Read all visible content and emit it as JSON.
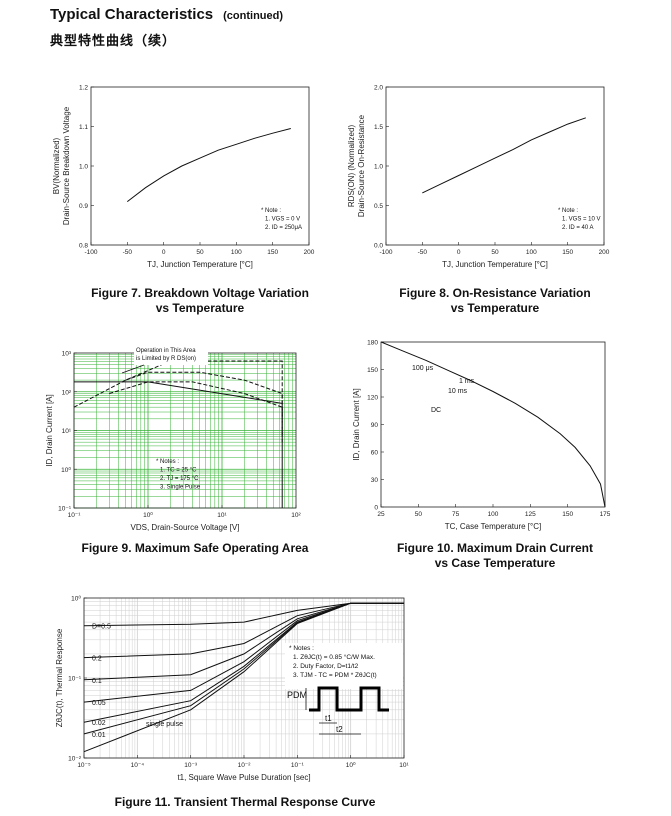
{
  "header": {
    "title": "Typical Characteristics",
    "continued": "(continued)",
    "subtitle_cn": "典型特性曲线（续）"
  },
  "chart_data": [
    {
      "id": "fig7",
      "type": "line",
      "caption_line1": "Figure 7. Breakdown Voltage Variation",
      "caption_line2": "vs Temperature",
      "ylabel_line1": "BV(Normalized)",
      "ylabel_line2": "Drain-Source Breakdown Voltage",
      "xlabel": "TJ, Junction Temperature [°C]",
      "xlim": [
        -100,
        200
      ],
      "ylim": [
        0.8,
        1.2
      ],
      "xticks": [
        "-100",
        "-50",
        "0",
        "50",
        "100",
        "150",
        "200"
      ],
      "yticks": [
        "0.8",
        "0.9",
        "1.0",
        "1.1",
        "1.2"
      ],
      "note": [
        "* Note :",
        "1. VGS = 0 V",
        "2. ID = 250μA"
      ],
      "series": [
        {
          "x": [
            -50,
            -25,
            0,
            25,
            50,
            75,
            100,
            125,
            150,
            175
          ],
          "y": [
            0.91,
            0.945,
            0.975,
            1.0,
            1.02,
            1.04,
            1.055,
            1.07,
            1.083,
            1.095
          ]
        }
      ]
    },
    {
      "id": "fig8",
      "type": "line",
      "caption_line1": "Figure 8. On-Resistance Variation",
      "caption_line2": "vs Temperature",
      "ylabel_line1": "RDS(ON) (Normalized)",
      "ylabel_line2": "Drain-Source On-Resistance",
      "xlabel": "TJ, Junction Temperature [°C]",
      "xlim": [
        -100,
        200
      ],
      "ylim": [
        0.0,
        2.0
      ],
      "xticks": [
        "-100",
        "-50",
        "0",
        "50",
        "100",
        "150",
        "200"
      ],
      "yticks": [
        "0.0",
        "0.5",
        "1.0",
        "1.5",
        "2.0"
      ],
      "note": [
        "* Note :",
        "1. VGS = 10 V",
        "2. ID = 40 A"
      ],
      "series": [
        {
          "x": [
            -50,
            -25,
            0,
            25,
            50,
            75,
            100,
            125,
            150,
            175
          ],
          "y": [
            0.66,
            0.77,
            0.88,
            0.99,
            1.1,
            1.21,
            1.33,
            1.43,
            1.53,
            1.61
          ]
        }
      ]
    },
    {
      "id": "fig9",
      "type": "line",
      "xscale": "log",
      "yscale": "log",
      "caption_line1": "Figure 9. Maximum Safe Operating Area",
      "ylabel": "ID, Drain Current [A]",
      "xlabel": "VDS, Drain-Source Voltage [V]",
      "xlim": [
        0.1,
        100
      ],
      "ylim": [
        0.1,
        1000
      ],
      "xticks": [
        "10⁻¹",
        "10⁰",
        "10¹",
        "10²"
      ],
      "yticks": [
        "10⁻¹",
        "10⁰",
        "10¹",
        "10²",
        "10³"
      ],
      "annotation": [
        "Operation in This Area",
        "is Limited by R DS(on)"
      ],
      "note": [
        "* Notes :",
        "1. TC = 25 °C",
        "2. TJ = 175 °C",
        "3. Single Pulse"
      ],
      "curve_labels": [
        "100 μs",
        "1 ms",
        "10 ms",
        "DC"
      ],
      "series": [
        {
          "name": "100 μs",
          "x": [
            0.1,
            0.2,
            0.5,
            2,
            6,
            65,
            65
          ],
          "y": [
            40,
            80,
            200,
            620,
            620,
            620,
            20
          ]
        },
        {
          "name": "1 ms",
          "x": [
            0.5,
            1,
            5,
            20,
            65,
            65
          ],
          "y": [
            200,
            320,
            320,
            200,
            90,
            8
          ]
        },
        {
          "name": "10 ms",
          "x": [
            0.3,
            1,
            4,
            20,
            65,
            65
          ],
          "y": [
            90,
            180,
            180,
            90,
            40,
            5
          ]
        },
        {
          "name": "DC",
          "x": [
            0.1,
            1,
            65,
            65
          ],
          "y": [
            180,
            180,
            50,
            0.1
          ]
        }
      ]
    },
    {
      "id": "fig10",
      "type": "line",
      "caption_line1": "Figure 10. Maximum Drain Current",
      "caption_line2": "vs Case Temperature",
      "ylabel": "ID, Drain Current [A]",
      "xlabel": "TC, Case Temperature [°C]",
      "xlim": [
        25,
        175
      ],
      "ylim": [
        0,
        180
      ],
      "xticks": [
        "25",
        "50",
        "75",
        "100",
        "125",
        "150",
        "175"
      ],
      "yticks": [
        "0",
        "30",
        "60",
        "90",
        "120",
        "150",
        "180"
      ],
      "series": [
        {
          "x": [
            25,
            40,
            55,
            70,
            85,
            100,
            115,
            130,
            145,
            155,
            165,
            172,
            175
          ],
          "y": [
            180,
            170,
            160,
            149,
            138,
            126,
            113,
            98,
            80,
            65,
            45,
            25,
            0
          ]
        }
      ]
    },
    {
      "id": "fig11",
      "type": "line",
      "xscale": "log",
      "yscale": "log",
      "caption_line1": "Figure 11. Transient Thermal Response Curve",
      "ylabel": "ZθJC(t), Thermal Response",
      "xlabel": "t1, Square Wave Pulse Duration [sec]",
      "xlim": [
        1e-05,
        10
      ],
      "ylim": [
        0.01,
        1
      ],
      "xticks": [
        "10⁻⁵",
        "10⁻⁴",
        "10⁻³",
        "10⁻²",
        "10⁻¹",
        "10⁰",
        "10¹"
      ],
      "yticks": [
        "10⁻²",
        "10⁻¹",
        "10⁰"
      ],
      "note": [
        "* Notes :",
        "1. ZθJC(t) = 0.85 °C/W Max.",
        "2. Duty Factor, D=t1/t2",
        "3. TJM - TC = PDM * ZθJC(t)"
      ],
      "curve_labels": [
        "D=0.5",
        "0.2",
        "0.1",
        "0.05",
        "0.02",
        "0.01",
        "single pulse"
      ],
      "waveform_labels": [
        "PDM",
        "t1",
        "t2"
      ],
      "series": [
        {
          "name": "D=0.5",
          "x": [
            1e-05,
            0.001,
            0.01,
            0.1,
            1,
            10
          ],
          "y": [
            0.45,
            0.47,
            0.5,
            0.7,
            0.86,
            0.86
          ]
        },
        {
          "name": "0.2",
          "x": [
            1e-05,
            0.001,
            0.01,
            0.1,
            1,
            10
          ],
          "y": [
            0.18,
            0.2,
            0.27,
            0.6,
            0.86,
            0.86
          ]
        },
        {
          "name": "0.1",
          "x": [
            1e-05,
            0.001,
            0.01,
            0.1,
            1,
            10
          ],
          "y": [
            0.095,
            0.11,
            0.2,
            0.55,
            0.86,
            0.86
          ]
        },
        {
          "name": "0.05",
          "x": [
            1e-05,
            0.001,
            0.01,
            0.1,
            1,
            10
          ],
          "y": [
            0.05,
            0.07,
            0.16,
            0.52,
            0.86,
            0.86
          ]
        },
        {
          "name": "0.02",
          "x": [
            1e-05,
            0.001,
            0.01,
            0.1,
            1,
            10
          ],
          "y": [
            0.028,
            0.052,
            0.14,
            0.5,
            0.86,
            0.86
          ]
        },
        {
          "name": "0.01",
          "x": [
            1e-05,
            0.001,
            0.01,
            0.1,
            1,
            10
          ],
          "y": [
            0.02,
            0.045,
            0.13,
            0.49,
            0.86,
            0.86
          ]
        },
        {
          "name": "single pulse",
          "x": [
            1e-05,
            0.001,
            0.01,
            0.1,
            1,
            10
          ],
          "y": [
            0.012,
            0.04,
            0.12,
            0.48,
            0.86,
            0.86
          ]
        }
      ]
    }
  ]
}
